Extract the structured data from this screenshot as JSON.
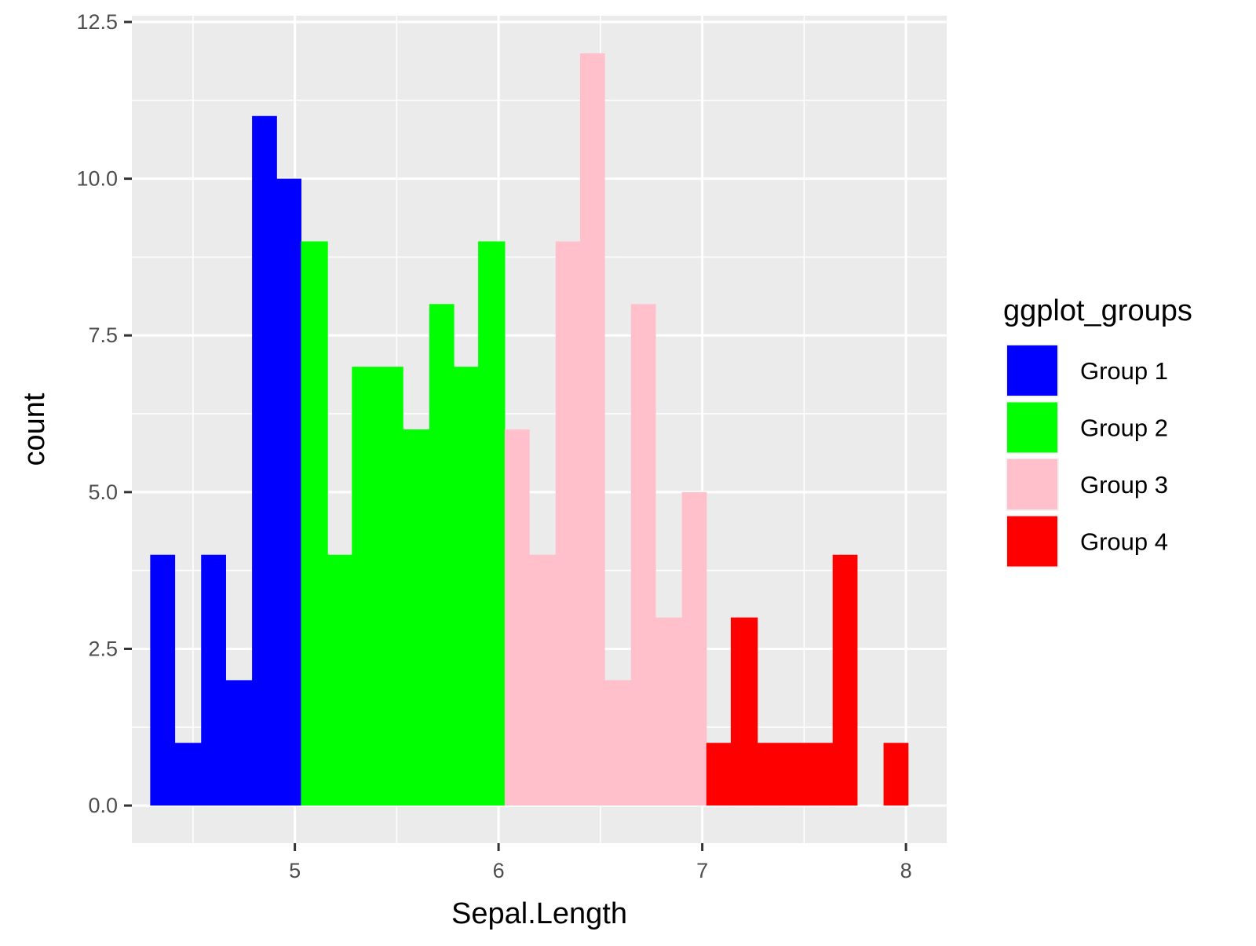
{
  "chart_data": {
    "type": "bar",
    "subtype": "histogram",
    "title": "",
    "xlabel": "Sepal.Length",
    "ylabel": "count",
    "bin_width": 0.124,
    "xlim": [
      4.2,
      8.2
    ],
    "ylim": [
      -0.6,
      12.6
    ],
    "xticks": [
      5,
      6,
      7,
      8
    ],
    "xtick_labels": [
      "5",
      "6",
      "7",
      "8"
    ],
    "yticks": [
      0,
      2.5,
      5,
      7.5,
      10,
      12.5
    ],
    "ytick_labels": [
      "0.0",
      "2.5",
      "5.0",
      "7.5",
      "10.0",
      "12.5"
    ],
    "grid": true,
    "legend": {
      "title": "ggplot_groups",
      "position": "right",
      "entries": [
        {
          "label": "Group 1",
          "color": "#0000FF"
        },
        {
          "label": "Group 2",
          "color": "#00FF00"
        },
        {
          "label": "Group 3",
          "color": "#FFC0CB"
        },
        {
          "label": "Group 4",
          "color": "#FF0000"
        }
      ]
    },
    "bins": [
      {
        "x0": 4.29,
        "x1": 4.41,
        "count": 4,
        "group": 0
      },
      {
        "x0": 4.41,
        "x1": 4.54,
        "count": 1,
        "group": 0
      },
      {
        "x0": 4.54,
        "x1": 4.66,
        "count": 4,
        "group": 0
      },
      {
        "x0": 4.66,
        "x1": 4.79,
        "count": 2,
        "group": 0
      },
      {
        "x0": 4.79,
        "x1": 4.91,
        "count": 11,
        "group": 0
      },
      {
        "x0": 4.91,
        "x1": 5.03,
        "count": 10,
        "group": 0
      },
      {
        "x0": 5.03,
        "x1": 5.16,
        "count": 9,
        "group": 1
      },
      {
        "x0": 5.16,
        "x1": 5.28,
        "count": 4,
        "group": 1
      },
      {
        "x0": 5.28,
        "x1": 5.41,
        "count": 7,
        "group": 1
      },
      {
        "x0": 5.41,
        "x1": 5.53,
        "count": 7,
        "group": 1
      },
      {
        "x0": 5.53,
        "x1": 5.66,
        "count": 6,
        "group": 1
      },
      {
        "x0": 5.66,
        "x1": 5.78,
        "count": 8,
        "group": 1
      },
      {
        "x0": 5.78,
        "x1": 5.9,
        "count": 7,
        "group": 1
      },
      {
        "x0": 5.9,
        "x1": 6.03,
        "count": 9,
        "group": 1
      },
      {
        "x0": 6.03,
        "x1": 6.15,
        "count": 6,
        "group": 2
      },
      {
        "x0": 6.15,
        "x1": 6.28,
        "count": 4,
        "group": 2
      },
      {
        "x0": 6.28,
        "x1": 6.4,
        "count": 9,
        "group": 2
      },
      {
        "x0": 6.4,
        "x1": 6.52,
        "count": 12,
        "group": 2
      },
      {
        "x0": 6.52,
        "x1": 6.65,
        "count": 2,
        "group": 2
      },
      {
        "x0": 6.65,
        "x1": 6.77,
        "count": 8,
        "group": 2
      },
      {
        "x0": 6.77,
        "x1": 6.9,
        "count": 3,
        "group": 2
      },
      {
        "x0": 6.9,
        "x1": 7.02,
        "count": 5,
        "group": 2
      },
      {
        "x0": 7.02,
        "x1": 7.14,
        "count": 1,
        "group": 3
      },
      {
        "x0": 7.14,
        "x1": 7.27,
        "count": 3,
        "group": 3
      },
      {
        "x0": 7.27,
        "x1": 7.39,
        "count": 1,
        "group": 3
      },
      {
        "x0": 7.39,
        "x1": 7.52,
        "count": 1,
        "group": 3
      },
      {
        "x0": 7.52,
        "x1": 7.64,
        "count": 1,
        "group": 3
      },
      {
        "x0": 7.64,
        "x1": 7.76,
        "count": 4,
        "group": 3
      },
      {
        "x0": 7.89,
        "x1": 8.01,
        "count": 1,
        "group": 3
      }
    ],
    "series": [
      {
        "name": "Group 1",
        "color": "#0000FF"
      },
      {
        "name": "Group 2",
        "color": "#00FF00"
      },
      {
        "name": "Group 3",
        "color": "#FFC0CB"
      },
      {
        "name": "Group 4",
        "color": "#FF0000"
      }
    ]
  }
}
